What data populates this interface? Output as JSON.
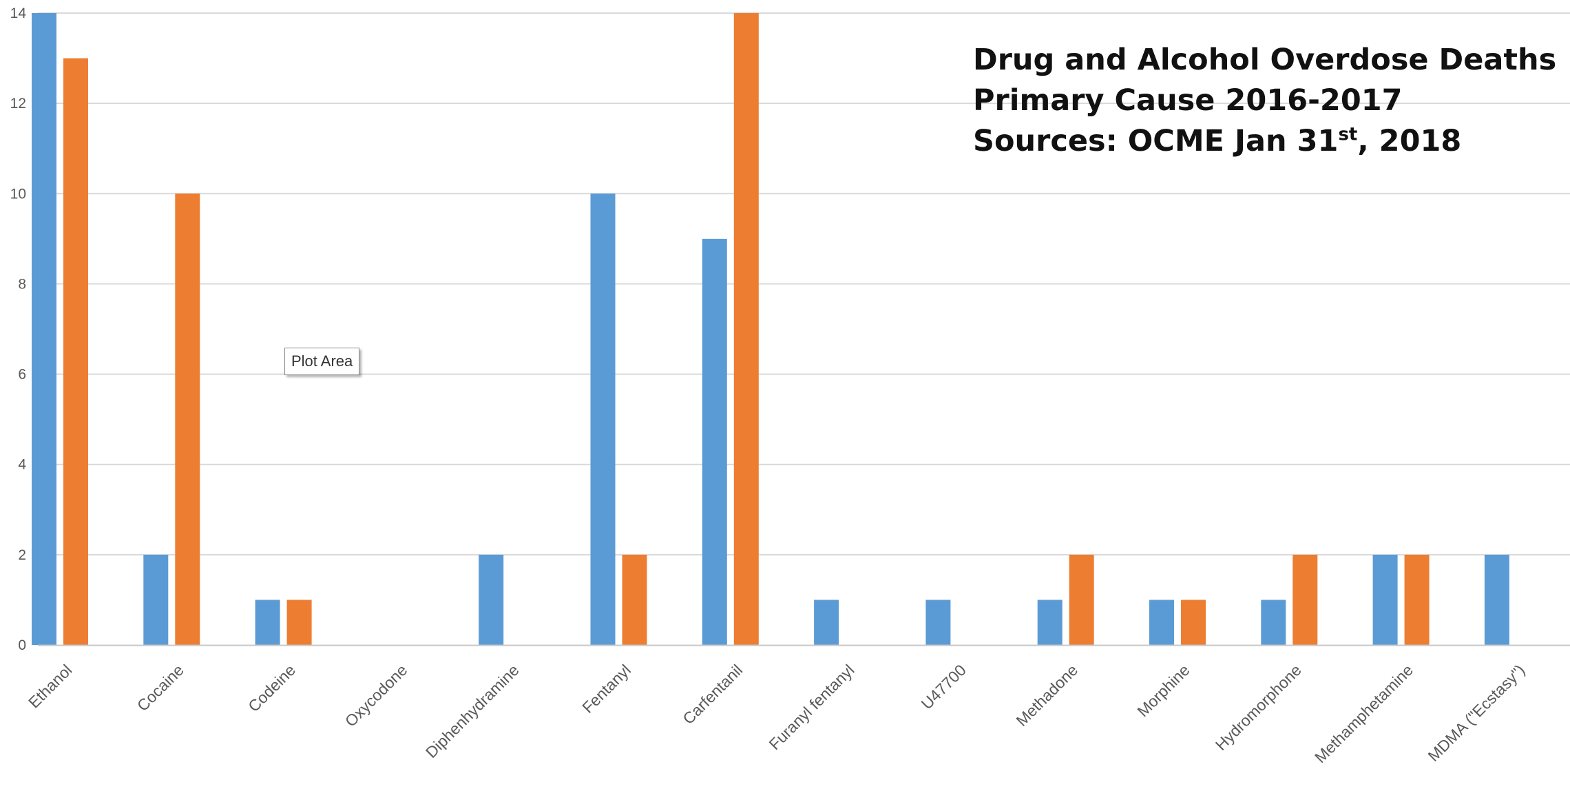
{
  "chart_data": {
    "type": "bar",
    "categories": [
      "Ethanol",
      "Cocaine",
      "Codeine",
      "Oxycodone",
      "Diphenhydramine",
      "Fentanyl",
      "Carfentanil",
      "Furanyl fentanyl",
      "U47700",
      "Methadone",
      "Morphine",
      "Hydromorphone",
      "Methamphetamine",
      "MDMA (\"Ecstasy\")"
    ],
    "series": [
      {
        "values": [
          14,
          2,
          1,
          0,
          2,
          10,
          9,
          1,
          1,
          1,
          1,
          1,
          2,
          2
        ],
        "color": "#5B9BD5"
      },
      {
        "values": [
          13,
          10,
          1,
          0,
          0,
          2,
          14,
          0,
          0,
          2,
          1,
          2,
          2,
          0
        ],
        "color": "#ED7D31"
      }
    ],
    "title_lines": [
      "Drug and Alcohol Overdose Deaths",
      "Primary Cause 2016-2017"
    ],
    "source_prefix": "Sources: OCME Jan 31",
    "source_suffix": "st",
    "source_rest": ", 2018",
    "ylim": [
      0,
      14
    ],
    "yticks": [
      0,
      2,
      4,
      6,
      8,
      10,
      12,
      14
    ],
    "grid": true,
    "tooltip": "Plot Area"
  }
}
